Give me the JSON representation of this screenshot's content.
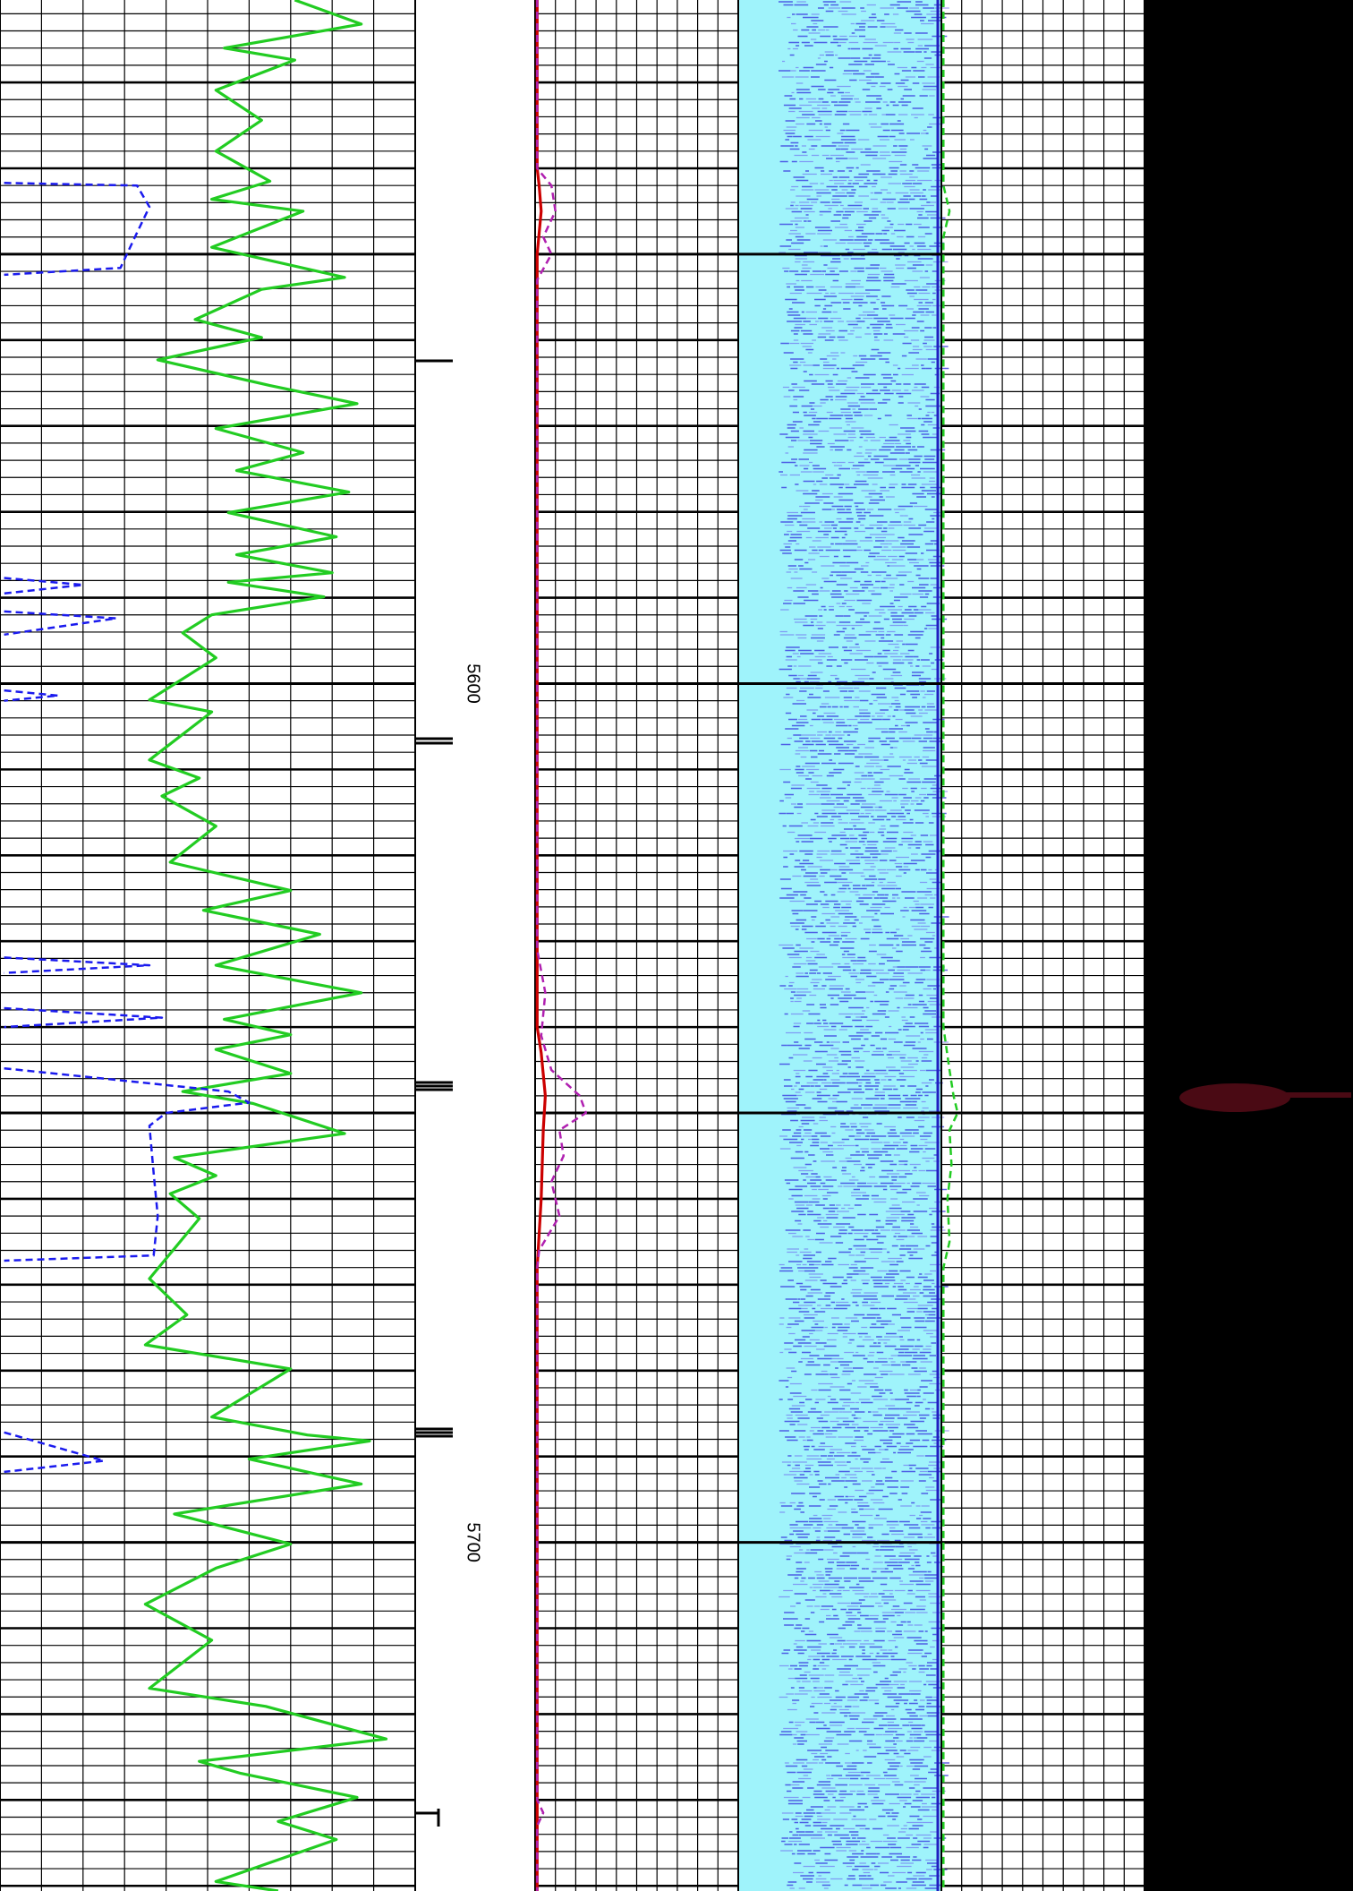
{
  "chart_data": {
    "type": "well-log",
    "ylim": [
      5520.4,
      5740.6
    ],
    "yticks": [
      5600,
      5700
    ],
    "grid": true,
    "series": [
      {
        "color": "#22cc22",
        "track": 0,
        "dash": false,
        "xlim": [
          0,
          100
        ],
        "depth": [
          5520.4,
          5523.2,
          5526.0,
          5527.4,
          5530.9,
          5534.4,
          5538.0,
          5541.5,
          5543.6,
          5545.0,
          5549.2,
          5552.7,
          5554.1,
          5557.6,
          5559.7,
          5562.3,
          5565.3,
          5567.4,
          5570.3,
          5573.1,
          5575.2,
          5577.7,
          5580.1,
          5582.9,
          5585.0,
          5587.1,
          5588.2,
          5589.9,
          5592.0,
          5594.1,
          5597.0,
          5601.9,
          5603.3,
          5608.9,
          5611.0,
          5613.1,
          5616.6,
          5620.8,
          5624.1,
          5626.4,
          5629.2,
          5632.8,
          5636.0,
          5639.1,
          5640.9,
          5642.6,
          5645.4,
          5647.5,
          5648.9,
          5652.4,
          5655.2,
          5657.3,
          5659.4,
          5662.3,
          5669.3,
          5673.5,
          5677.0,
          5679.8,
          5685.4,
          5687.5,
          5688.2,
          5690.3,
          5693.2,
          5696.7,
          5700.2,
          5703.0,
          5707.2,
          5711.4,
          5717.0,
          5719.1,
          5722.9,
          5725.5,
          5726.9,
          5729.7,
          5732.5,
          5734.6,
          5739.5,
          5740.6
        ],
        "values": [
          71,
          87,
          54,
          71,
          52,
          63,
          52,
          65,
          51,
          73,
          51,
          83,
          63,
          47,
          63,
          38,
          65,
          86,
          52,
          73,
          57,
          84,
          55,
          81,
          57,
          80,
          55,
          78,
          51,
          44,
          52,
          36,
          51,
          36,
          48,
          39,
          52,
          41,
          70,
          49,
          77,
          52,
          87,
          54,
          70,
          52,
          70,
          44,
          61,
          83,
          42,
          52,
          41,
          48,
          36,
          45,
          35,
          70,
          51,
          74,
          89,
          60,
          87,
          42,
          70,
          52,
          35,
          51,
          36,
          64,
          93,
          48,
          58,
          86,
          67,
          81,
          52,
          67
        ]
      },
      {
        "color": "#1a1aee",
        "track": 0,
        "dash": true,
        "xlim": [
          0,
          100
        ],
        "depth": [
          5541.7,
          5542.0,
          5544.5,
          5547.5,
          5551.6,
          5552.4,
          5570,
          5587.7,
          5588.5,
          5589.5,
          5590,
          5591.6,
          5592.4,
          5594.3,
          5595,
          5600.8,
          5601.4,
          5602.0,
          5610,
          5631.9,
          5632.8,
          5633.7,
          5635,
          5637.8,
          5638.9,
          5640.0,
          5642,
          5644.8,
          5646.4,
          5647.5,
          5648.8,
          5650.0,
          5651.5,
          5657.0,
          5662.0,
          5666.6,
          5667.2,
          5680,
          5687.2,
          5690.5,
          5691.8
        ],
        "values": [
          1,
          33,
          36,
          33,
          29,
          1,
          null,
          1,
          20,
          1,
          null,
          1,
          28,
          1,
          null,
          1,
          14,
          1,
          null,
          1,
          36,
          1,
          null,
          1,
          39,
          1,
          null,
          1,
          33,
          55,
          60,
          40,
          36,
          37,
          38,
          37,
          1,
          null,
          1,
          25,
          1
        ]
      },
      {
        "color": "#cc0000",
        "track": 1,
        "dash": false,
        "xlim": [
          0,
          100
        ],
        "depth": [
          5520.4,
          5540,
          5542,
          5545,
          5550,
          5555,
          5640,
          5643,
          5648,
          5652,
          5660,
          5668,
          5740.6
        ],
        "values": [
          1,
          1,
          2,
          3,
          1,
          1,
          1,
          3,
          5,
          4,
          3,
          1,
          1
        ]
      },
      {
        "color": "#b020b0",
        "track": 1,
        "dash": true,
        "xlim": [
          0,
          100
        ],
        "depth": [
          5520.4,
          5540,
          5542,
          5545,
          5548,
          5550,
          5553,
          5631,
          5636,
          5641,
          5645,
          5648,
          5650,
          5652,
          5655,
          5658,
          5662,
          5666,
          5668,
          5730,
          5731.5,
          5733,
          5740.6
        ],
        "values": [
          1,
          1,
          8,
          10,
          4,
          8,
          1,
          1,
          5,
          3,
          8,
          22,
          25,
          12,
          14,
          8,
          12,
          2,
          1,
          1,
          4,
          1,
          1
        ]
      },
      {
        "color": "#22cc22",
        "track": 3,
        "dash": true,
        "xlim": [
          0,
          100
        ],
        "depth": [
          5520.4,
          5542,
          5545,
          5548,
          5640,
          5645,
          5648,
          5650,
          5652,
          5656,
          5660,
          5665,
          5668,
          5740.6
        ],
        "values": [
          1,
          1,
          4,
          1,
          1,
          4,
          6,
          8,
          4,
          5,
          3,
          4,
          1,
          1
        ]
      }
    ]
  }
}
